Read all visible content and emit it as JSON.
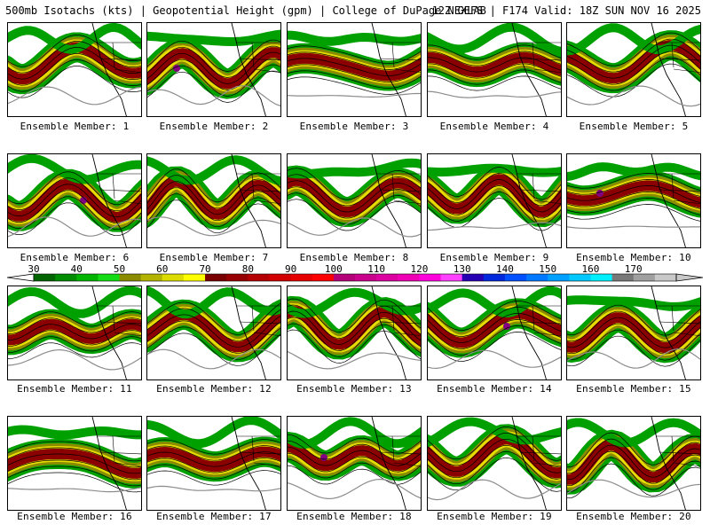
{
  "header": {
    "left": "500mb Isotachs (kts) | Geopotential Height (gpm) | College of DuPage NEXLAB",
    "right": "12Z GEFS | F174 Valid: 18Z SUN NOV 16 2025"
  },
  "members": [
    {
      "caption": "Ensemble Member: 1"
    },
    {
      "caption": "Ensemble Member: 2"
    },
    {
      "caption": "Ensemble Member: 3"
    },
    {
      "caption": "Ensemble Member: 4"
    },
    {
      "caption": "Ensemble Member: 5"
    },
    {
      "caption": "Ensemble Member: 6"
    },
    {
      "caption": "Ensemble Member: 7"
    },
    {
      "caption": "Ensemble Member: 8"
    },
    {
      "caption": "Ensemble Member: 9"
    },
    {
      "caption": "Ensemble Member: 10"
    },
    {
      "caption": "Ensemble Member: 11"
    },
    {
      "caption": "Ensemble Member: 12"
    },
    {
      "caption": "Ensemble Member: 13"
    },
    {
      "caption": "Ensemble Member: 14"
    },
    {
      "caption": "Ensemble Member: 15"
    },
    {
      "caption": "Ensemble Member: 16"
    },
    {
      "caption": "Ensemble Member: 17"
    },
    {
      "caption": "Ensemble Member: 18"
    },
    {
      "caption": "Ensemble Member: 19"
    },
    {
      "caption": "Ensemble Member: 20"
    }
  ],
  "colorbar": {
    "ticks": [
      "30",
      "40",
      "50",
      "60",
      "70",
      "80",
      "90",
      "100",
      "110",
      "120",
      "130",
      "140",
      "150",
      "160",
      "170"
    ],
    "colors": [
      "#006400",
      "#008c00",
      "#00b400",
      "#14dc14",
      "#8b8b00",
      "#b4b400",
      "#dcdc00",
      "#ffff00",
      "#780000",
      "#960000",
      "#b40000",
      "#d20000",
      "#e60000",
      "#ff0000",
      "#b40078",
      "#c8008c",
      "#dc00a0",
      "#f000b4",
      "#ff00dc",
      "#ff40ff",
      "#2800b4",
      "#0028dc",
      "#0050ff",
      "#0078ff",
      "#00a0ff",
      "#00c8ff",
      "#00f0ff",
      "#787878",
      "#a0a0a0",
      "#c8c8c8"
    ]
  },
  "map_colors": {
    "green": "#00a000",
    "olive": "#8b8b00",
    "yellow": "#e6dc00",
    "red": "#8b0000",
    "purple": "#800080",
    "contour": "#000000",
    "border": "#000000",
    "height": "#8c8c8c"
  }
}
